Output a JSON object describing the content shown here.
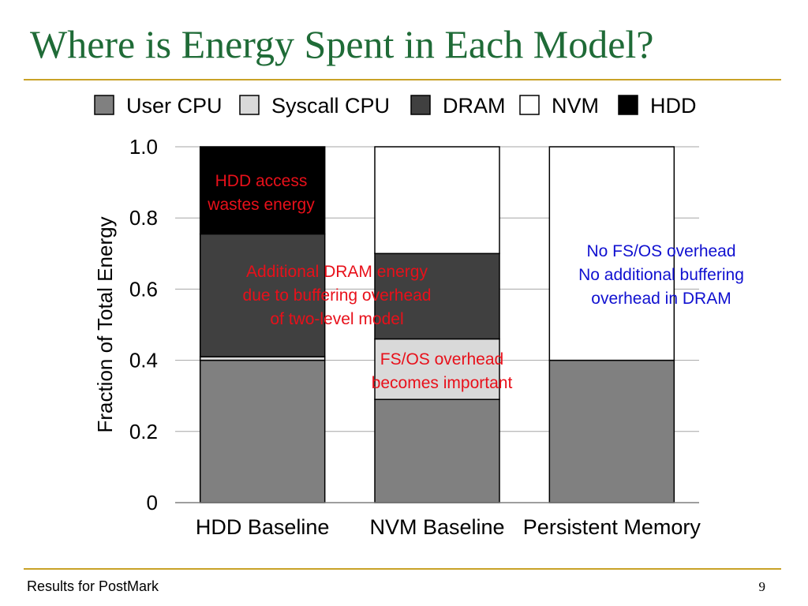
{
  "slide": {
    "title": "Where is Energy Spent in Each Model?",
    "footer": "Results for PostMark",
    "page_number": "9"
  },
  "chart_data": {
    "type": "bar",
    "stacked": true,
    "categories": [
      "HDD Baseline",
      "NVM Baseline",
      "Persistent Memory"
    ],
    "series": [
      {
        "name": "User CPU",
        "color": "#808080",
        "values": [
          0.4,
          0.29,
          0.4
        ]
      },
      {
        "name": "Syscall CPU",
        "color": "#d9d9d9",
        "values": [
          0.01,
          0.17,
          0.0
        ]
      },
      {
        "name": "DRAM",
        "color": "#404040",
        "values": [
          0.345,
          0.24,
          0.0
        ]
      },
      {
        "name": "NVM",
        "color": "#ffffff",
        "values": [
          0.0,
          0.3,
          0.6
        ]
      },
      {
        "name": "HDD",
        "color": "#000000",
        "values": [
          0.245,
          0.0,
          0.0
        ]
      }
    ],
    "ylabel": "Fraction of Total Energy",
    "ylim": [
      0,
      1.0
    ],
    "yticks": [
      "0",
      "0.2",
      "0.4",
      "0.6",
      "0.8",
      "1.0"
    ],
    "grid": true,
    "legend_position": "top",
    "annotations": [
      {
        "lines": [
          "HDD access",
          "wastes energy"
        ],
        "color": "#e8101a"
      },
      {
        "lines": [
          "Additional DRAM energy",
          "due to buffering overhead",
          "of two-level model"
        ],
        "color": "#e8101a"
      },
      {
        "lines": [
          "FS/OS overhead",
          "becomes important"
        ],
        "color": "#e8101a"
      },
      {
        "lines": [
          "No FS/OS overhead",
          "No additional buffering",
          "overhead in DRAM"
        ],
        "color": "#1010d0"
      }
    ]
  }
}
